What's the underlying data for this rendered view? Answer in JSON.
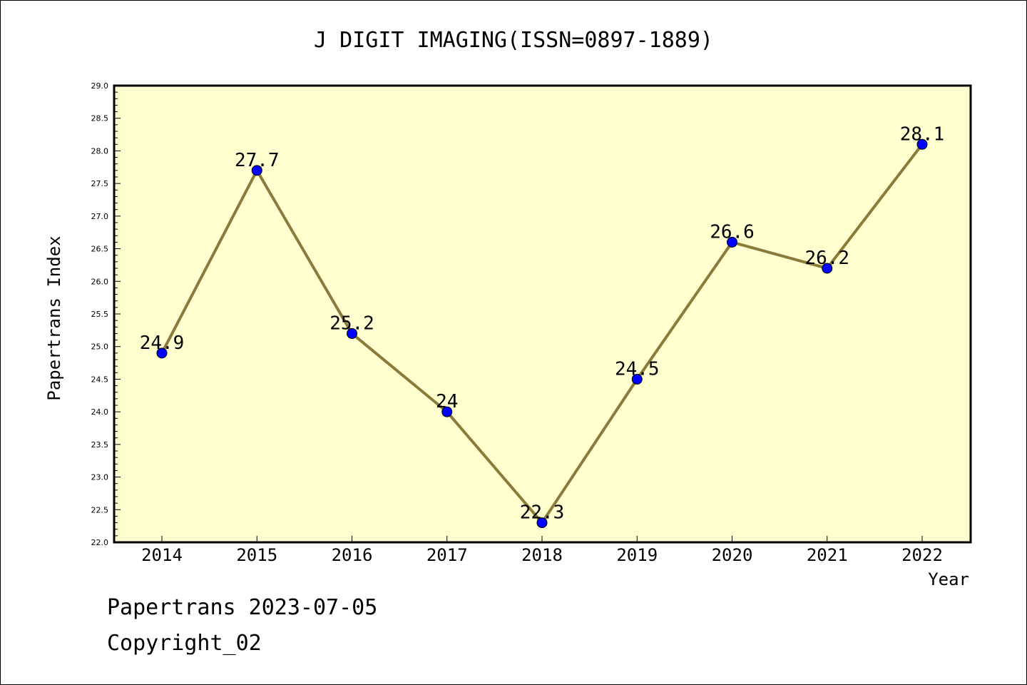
{
  "chart_data": {
    "type": "line",
    "title": "J DIGIT IMAGING(ISSN=0897-1889)",
    "xlabel": "Year",
    "ylabel": "Papertrans Index",
    "categories": [
      "2014",
      "2015",
      "2016",
      "2017",
      "2018",
      "2019",
      "2020",
      "2021",
      "2022"
    ],
    "series": [
      {
        "values": [
          24.9,
          27.7,
          25.2,
          24.0,
          22.3,
          24.5,
          26.6,
          26.2,
          28.1
        ],
        "labels": [
          "24.9",
          "27.7",
          "25.2",
          "24",
          "22.3",
          "24.5",
          "26.6",
          "26.2",
          "28.1"
        ]
      }
    ],
    "ylim": [
      22.0,
      29.0
    ],
    "yticks": [
      "22.0",
      "22.5",
      "23.0",
      "23.5",
      "24.0",
      "24.5",
      "25.0",
      "25.5",
      "26.0",
      "26.5",
      "27.0",
      "27.5",
      "28.0",
      "28.5",
      "29.0"
    ],
    "grid": false,
    "colors": {
      "line": "#8b7b3a",
      "marker": "#0000ff",
      "plot_bg": "#ffffd0"
    }
  },
  "footer": {
    "line1": "Papertrans 2023-07-05",
    "line2": "Copyright_02"
  }
}
